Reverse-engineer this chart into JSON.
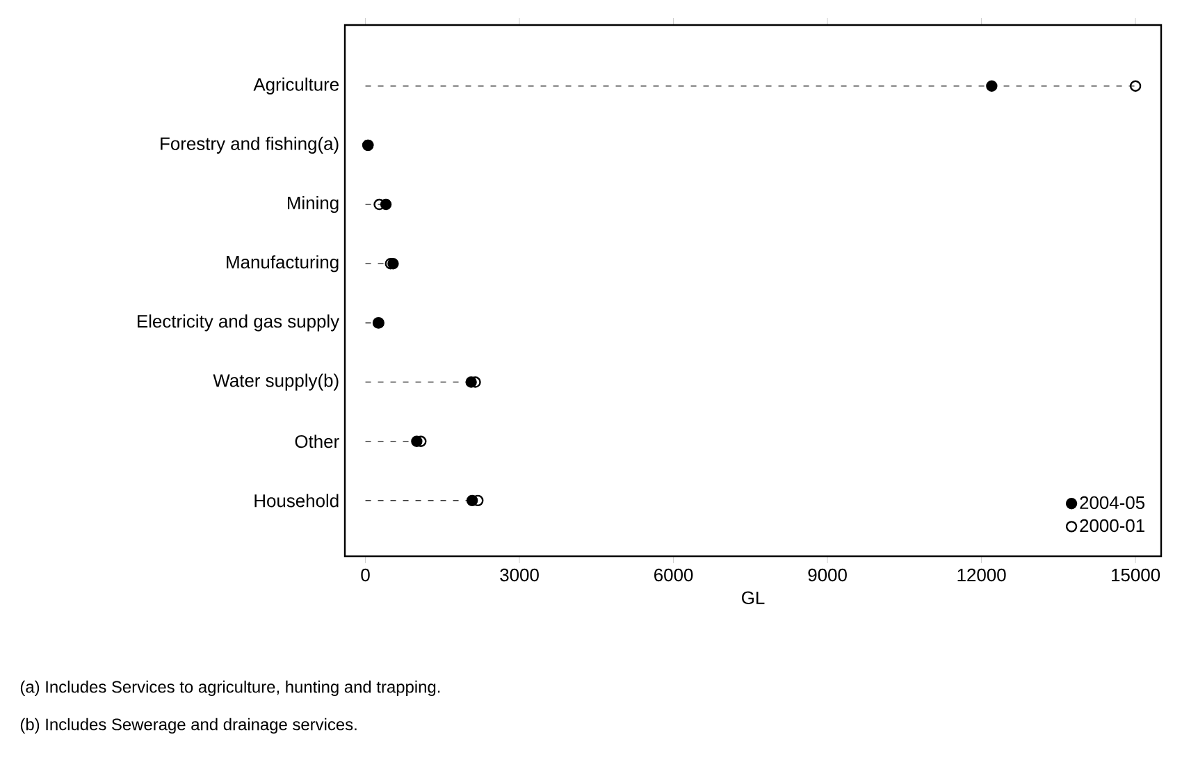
{
  "chart_data": {
    "type": "scatter",
    "orientation": "horizontal",
    "xlabel": "GL",
    "categories": [
      "Agriculture",
      "Forestry and fishing(a)",
      "Mining",
      "Manufacturing",
      "Electricity and gas supply",
      "Water supply(b)",
      "Other",
      "Household"
    ],
    "series": [
      {
        "name": "2004-05",
        "color": "#000000",
        "marker": "circle",
        "values": [
          12200,
          50,
          400,
          540,
          250,
          2060,
          1000,
          2080
        ]
      },
      {
        "name": "2000-01",
        "color": "#000000",
        "marker": "circle_open",
        "values": [
          15000,
          50,
          270,
          490,
          260,
          2140,
          1080,
          2190
        ]
      }
    ],
    "xlim": [
      -400,
      15500
    ],
    "xticks": [
      0,
      3000,
      6000,
      9000,
      12000,
      15000
    ],
    "line_style": "dashed",
    "legend": "bottom right",
    "grid": false,
    "annotations": [
      "(a) Includes Services to agriculture, hunting and trapping.",
      "(b) Includes Sewerage and drainage services."
    ]
  }
}
